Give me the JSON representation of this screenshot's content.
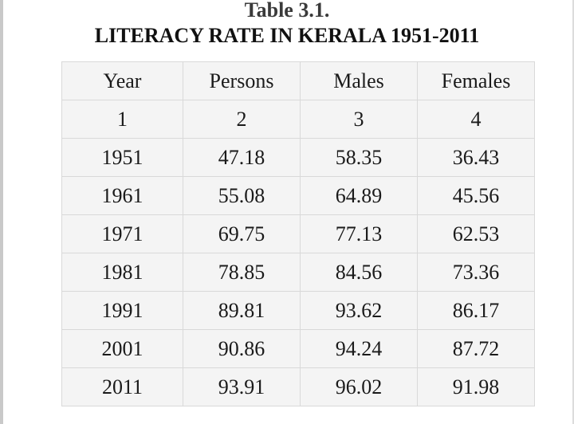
{
  "caption": {
    "label": "Table 3.1.",
    "title": "LITERACY RATE IN KERALA 1951-2011"
  },
  "table": {
    "headers": [
      "Year",
      "Persons",
      "Males",
      "Females"
    ],
    "column_numbers": [
      "1",
      "2",
      "3",
      "4"
    ],
    "rows": [
      [
        "1951",
        "47.18",
        "58.35",
        "36.43"
      ],
      [
        "1961",
        "55.08",
        "64.89",
        "45.56"
      ],
      [
        "1971",
        "69.75",
        "77.13",
        "62.53"
      ],
      [
        "1981",
        "78.85",
        "84.56",
        "73.36"
      ],
      [
        "1991",
        "89.81",
        "93.62",
        "86.17"
      ],
      [
        "2001",
        "90.86",
        "94.24",
        "87.72"
      ],
      [
        "2011",
        "93.91",
        "96.02",
        "91.98"
      ]
    ]
  }
}
